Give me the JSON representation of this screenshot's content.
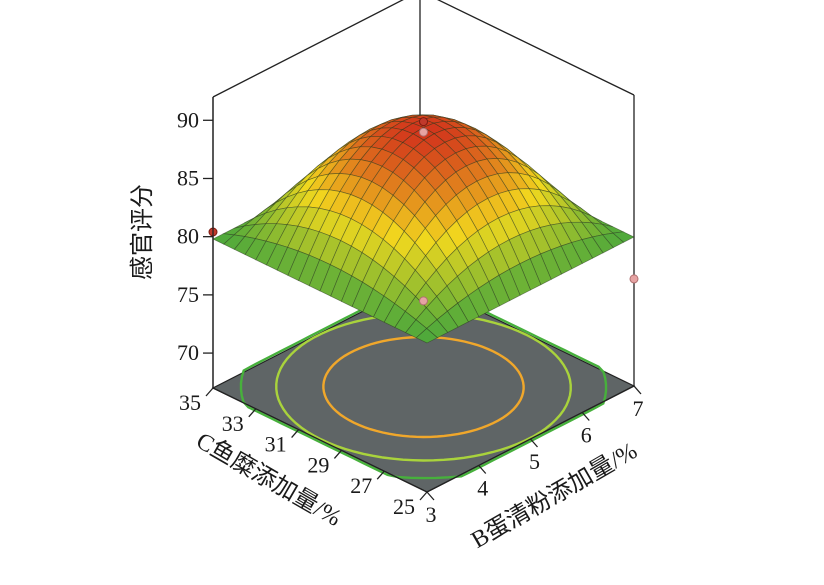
{
  "chart_data": {
    "type": "surface",
    "zlabel": "感官评分",
    "xlabel": "B蛋清粉添加量/%",
    "ylabel": "C鱼糜添加量/%",
    "x_ticks": [
      "3",
      "4",
      "5",
      "6",
      "7"
    ],
    "y_ticks": [
      "25",
      "27",
      "29",
      "31",
      "33",
      "35"
    ],
    "z_ticks": [
      "70",
      "75",
      "80",
      "85",
      "90"
    ],
    "xlim": [
      3,
      7
    ],
    "ylim": [
      25,
      35
    ],
    "zlim": [
      67,
      92
    ],
    "surface_model": {
      "peak_x": 5,
      "peak_y": 30,
      "peak_z": 89.3,
      "x_corner_drop": 9.5,
      "y_corner_drop": 9.5,
      "corner_interaction_drop": 9.5,
      "grid_n": 20
    },
    "design_points": [
      {
        "x": 5,
        "y": 30,
        "z": 89.8
      },
      {
        "x": 5,
        "y": 30,
        "z": 88.9
      },
      {
        "x": 3,
        "y": 35,
        "z": 80.4
      },
      {
        "x": 5,
        "y": 30,
        "z": 74.4
      },
      {
        "x": 7,
        "y": 25,
        "z": 76.2
      }
    ],
    "contour_levels": [
      75,
      80,
      85
    ],
    "colors": {
      "low": "#1f9b44",
      "mid": "#f2d81e",
      "high": "#d2351c",
      "floor": "#5f6566",
      "contour_outer": "#47b03c",
      "contour_mid": "#a9d33c",
      "contour_inner": "#f0a72b",
      "point": "#c0392b",
      "point_faded": "#e6a3a3"
    }
  }
}
